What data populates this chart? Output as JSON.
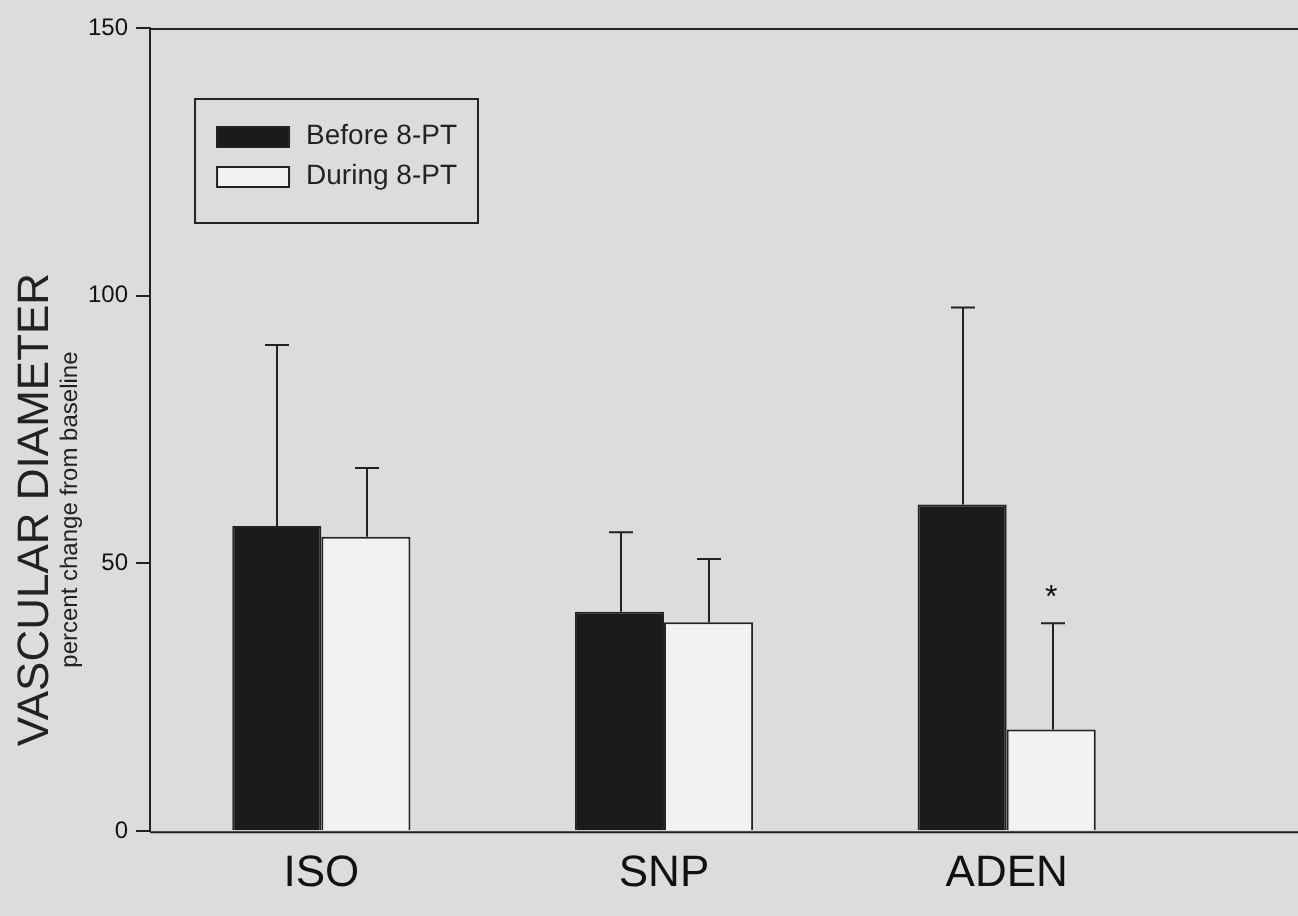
{
  "chart_data": {
    "type": "bar",
    "ylabel": "VASCULAR DIAMETER\npercent change from baseline",
    "categories": [
      "ISO",
      "SNP",
      "ADEN"
    ],
    "series": [
      {
        "name": "Before 8-PT",
        "color": "#1c1a1c",
        "values": [
          57,
          41,
          61
        ],
        "errors": [
          [
            57,
            91
          ],
          [
            41,
            56
          ],
          [
            61,
            98
          ]
        ]
      },
      {
        "name": "During 8-PT",
        "color": "#f2f2f2",
        "values": [
          55,
          39,
          19
        ],
        "errors": [
          [
            55,
            68
          ],
          [
            39,
            51
          ],
          [
            19,
            39
          ]
        ]
      }
    ],
    "ylim": [
      0,
      150
    ],
    "yticks": [
      0,
      50,
      100,
      150
    ],
    "grid": false,
    "legend": "top left",
    "annotations": [
      {
        "text": "*",
        "x": "ADEN",
        "y": 45
      }
    ]
  }
}
